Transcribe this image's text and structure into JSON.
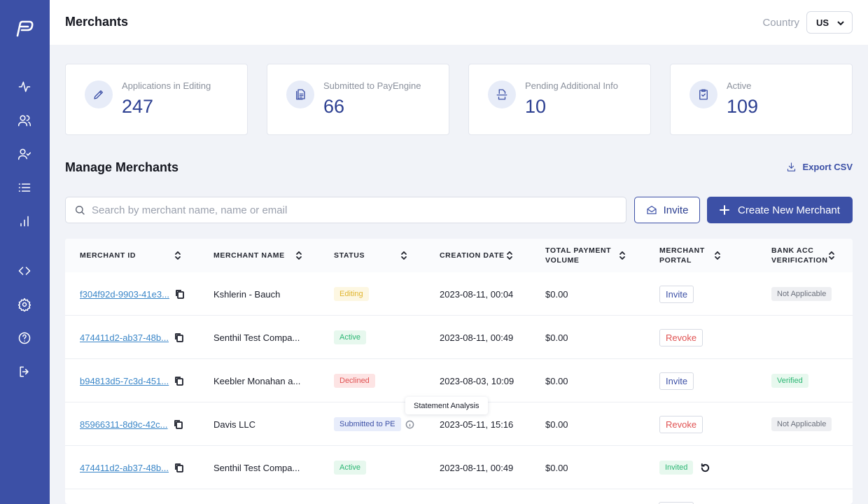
{
  "header": {
    "title": "Merchants",
    "country_label": "Country",
    "country_value": "US"
  },
  "sidebar": {
    "logo": "payengine-logo",
    "items": [
      {
        "icon": "activity-icon"
      },
      {
        "icon": "users-icon"
      },
      {
        "icon": "user-check-icon"
      },
      {
        "icon": "list-icon"
      },
      {
        "icon": "bar-chart-icon"
      },
      {
        "icon": "code-icon"
      },
      {
        "icon": "settings-icon"
      },
      {
        "icon": "help-icon"
      },
      {
        "icon": "logout-icon"
      }
    ]
  },
  "stats": [
    {
      "label": "Applications in Editing",
      "value": "247",
      "icon": "edit-icon"
    },
    {
      "label": "Submitted to PayEngine",
      "value": "66",
      "icon": "document-icon"
    },
    {
      "label": "Pending Additional Info",
      "value": "10",
      "icon": "scan-icon"
    },
    {
      "label": "Active",
      "value": "109",
      "icon": "clipboard-check-icon"
    }
  ],
  "manage": {
    "title": "Manage Merchants",
    "export_label": "Export CSV",
    "search_placeholder": "Search by merchant name, name or email",
    "invite_label": "Invite",
    "create_label": "Create New Merchant"
  },
  "table": {
    "columns": [
      {
        "line1": "MERCHANT ID",
        "line2": ""
      },
      {
        "line1": "MERCHANT NAME",
        "line2": ""
      },
      {
        "line1": "STATUS",
        "line2": ""
      },
      {
        "line1": "CREATION DATE",
        "line2": ""
      },
      {
        "line1": "TOTAL PAYMENT",
        "line2": "VOLUME"
      },
      {
        "line1": "MERCHANT",
        "line2": "PORTAL"
      },
      {
        "line1": "BANK ACC",
        "line2": "VERIFICATION"
      }
    ],
    "rows": [
      {
        "id": "f304f92d-9903-41e3...",
        "name": "Kshlerin - Bauch",
        "status": "Editing",
        "date": "2023-08-11, 00:04",
        "volume": "$0.00",
        "portal": "Invite",
        "bank": "Not Applicable"
      },
      {
        "id": "474411d2-ab37-48b...",
        "name": "Senthil Test Compa...",
        "status": "Active",
        "date": "2023-08-11, 00:49",
        "volume": "$0.00",
        "portal": "Revoke",
        "bank": ""
      },
      {
        "id": "b94813d5-7c3d-451...",
        "name": "Keebler Monahan a...",
        "status": "Declined",
        "date": "2023-08-03, 10:09",
        "volume": "$0.00",
        "portal": "Invite",
        "bank": "Verified"
      },
      {
        "id": "85966311-8d9c-42c...",
        "name": "Davis LLC",
        "status": "Submitted to PE",
        "date": "2023-05-11, 15:16",
        "volume": "$0.00",
        "portal": "Revoke",
        "bank": "Not Applicable"
      },
      {
        "id": "474411d2-ab37-48b...",
        "name": "Senthil Test Compa...",
        "status": "Active",
        "date": "2023-08-11, 00:49",
        "volume": "$0.00",
        "portal": "Invited",
        "bank": ""
      }
    ]
  },
  "tooltip": "Statement Analysis"
}
